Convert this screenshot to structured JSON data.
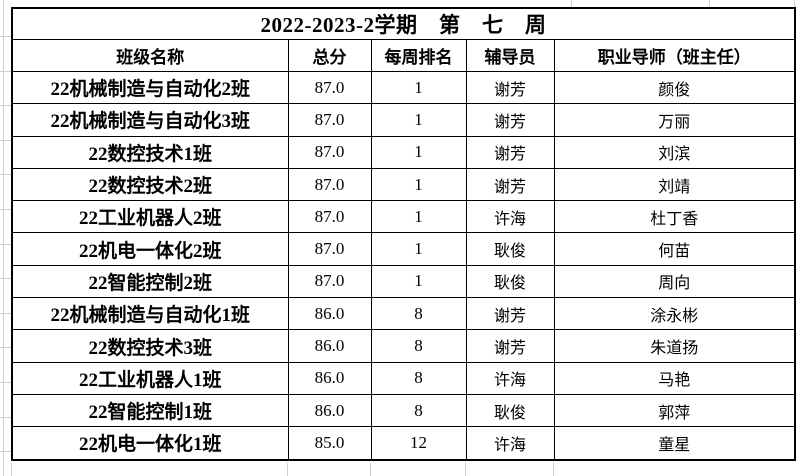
{
  "title": "2022-2023-2学期　第　七　周",
  "table": {
    "headers": [
      "班级名称",
      "总分",
      "每周排名",
      "辅导员",
      "职业导师（班主任）"
    ],
    "column_keys": [
      "class_name",
      "total_score",
      "weekly_rank",
      "counselor",
      "mentor"
    ],
    "rows": [
      [
        "22机械制造与自动化2班",
        "87.0",
        "1",
        "谢芳",
        "颜俊"
      ],
      [
        "22机械制造与自动化3班",
        "87.0",
        "1",
        "谢芳",
        "万丽"
      ],
      [
        "22数控技术1班",
        "87.0",
        "1",
        "谢芳",
        "刘滨"
      ],
      [
        "22数控技术2班",
        "87.0",
        "1",
        "谢芳",
        "刘靖"
      ],
      [
        "22工业机器人2班",
        "87.0",
        "1",
        "许海",
        "杜丁香"
      ],
      [
        "22机电一体化2班",
        "87.0",
        "1",
        "耿俊",
        "何苗"
      ],
      [
        "22智能控制2班",
        "87.0",
        "1",
        "耿俊",
        "周向"
      ],
      [
        "22机械制造与自动化1班",
        "86.0",
        "8",
        "谢芳",
        "涂永彬"
      ],
      [
        "22数控技术3班",
        "86.0",
        "8",
        "谢芳",
        "朱道扬"
      ],
      [
        "22工业机器人1班",
        "86.0",
        "8",
        "许海",
        "马艳"
      ],
      [
        "22智能控制1班",
        "86.0",
        "8",
        "耿俊",
        "郭萍"
      ],
      [
        "22机电一体化1班",
        "85.0",
        "12",
        "许海",
        "童星"
      ]
    ]
  },
  "colors": {
    "border": "#000000",
    "text": "#000000",
    "background": "#ffffff",
    "outer_gridline": "#c9cfd6"
  }
}
